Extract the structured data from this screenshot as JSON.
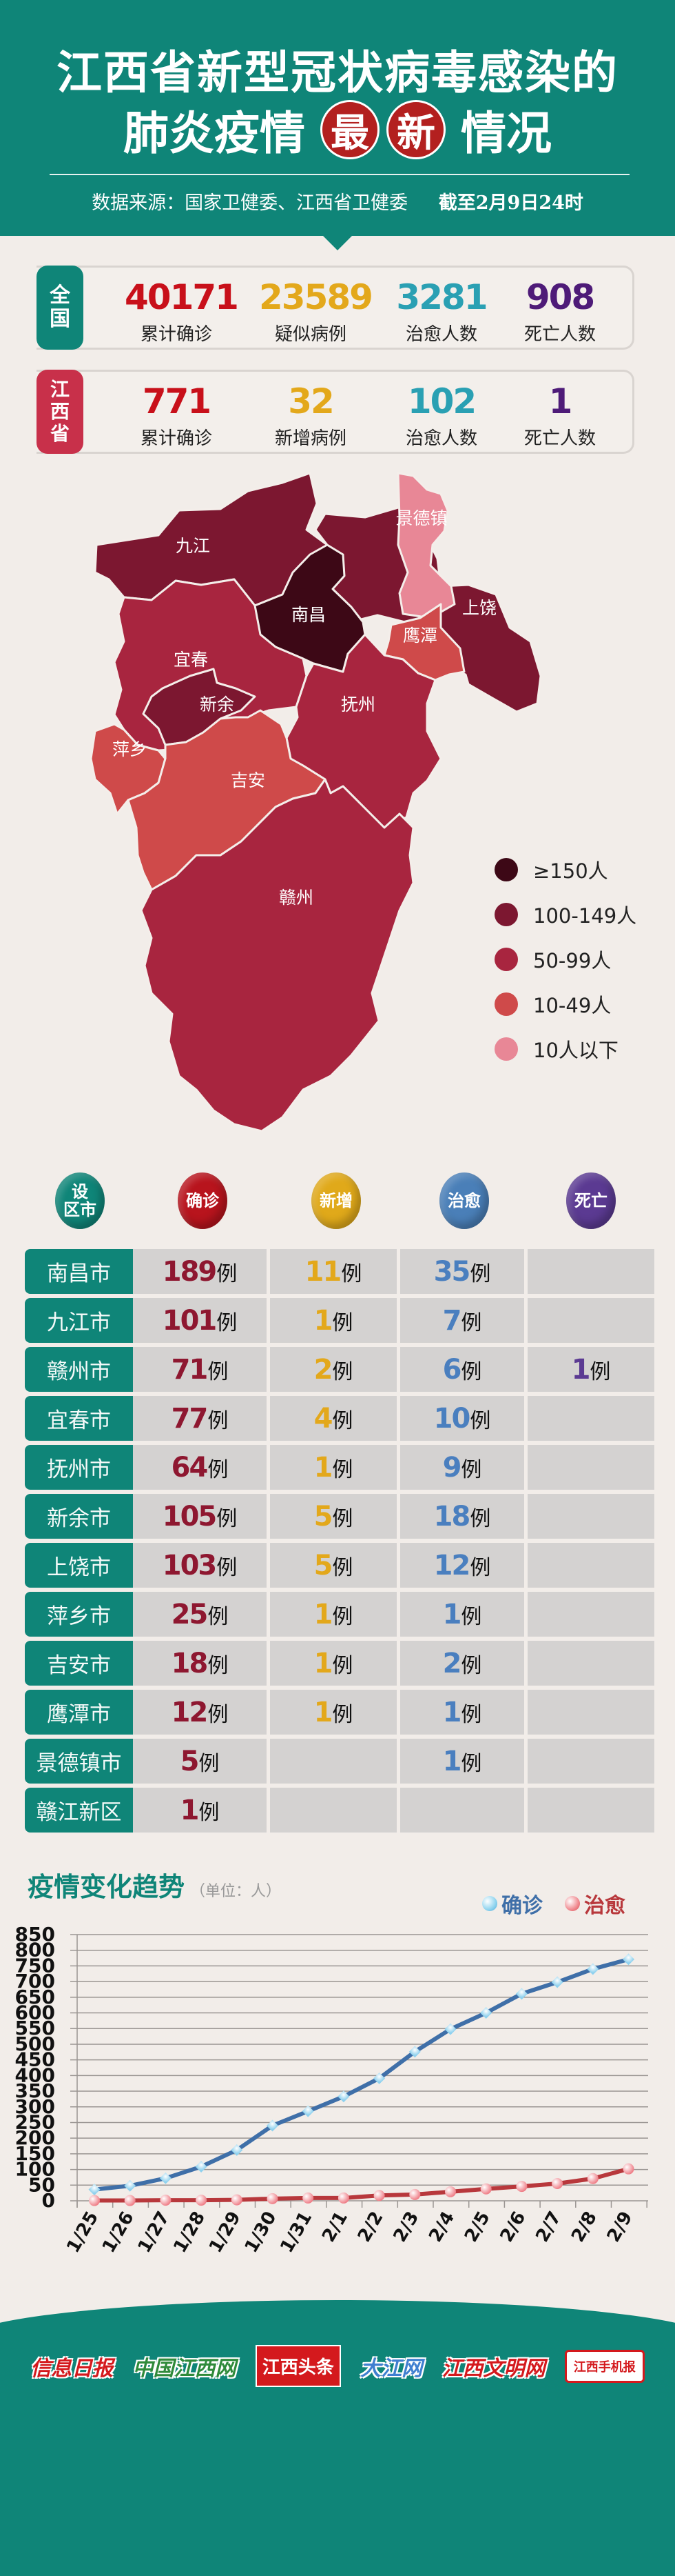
{
  "header": {
    "title_line1": "江西省新型冠状病毒感染的",
    "title_line2_pre": "肺炎疫情",
    "title_circle1": "最",
    "title_circle2": "新",
    "title_line2_post": "情况",
    "source": "数据来源：国家卫健委、江西省卫健委",
    "date": "截至2月9日24时"
  },
  "national": {
    "badge": [
      "全",
      "国"
    ],
    "items": [
      {
        "value": "40171",
        "label": "累计确诊",
        "color": "#c8101a"
      },
      {
        "value": "23589",
        "label": "疑似病例",
        "color": "#e3a81b"
      },
      {
        "value": "3281",
        "label": "治愈人数",
        "color": "#2aa0b3"
      },
      {
        "value": "908",
        "label": "死亡人数",
        "color": "#4e1b78"
      }
    ]
  },
  "province": {
    "badge": [
      "江",
      "西",
      "省"
    ],
    "items": [
      {
        "value": "771",
        "label": "累计确诊",
        "color": "#c8101a"
      },
      {
        "value": "32",
        "label": "新增病例",
        "color": "#e3a81b"
      },
      {
        "value": "102",
        "label": "治愈人数",
        "color": "#2aa0b3"
      },
      {
        "value": "1",
        "label": "死亡人数",
        "color": "#4e1b78"
      }
    ]
  },
  "map": {
    "regions": [
      {
        "name": "九江",
        "bucket": "100-149人"
      },
      {
        "name": "景德镇",
        "bucket": "10人以下"
      },
      {
        "name": "南昌",
        "bucket": "≥150人"
      },
      {
        "name": "上饶",
        "bucket": "100-149人"
      },
      {
        "name": "鹰潭",
        "bucket": "10-49人"
      },
      {
        "name": "宜春",
        "bucket": "50-99人"
      },
      {
        "name": "新余",
        "bucket": "100-149人"
      },
      {
        "name": "抚州",
        "bucket": "50-99人"
      },
      {
        "name": "萍乡",
        "bucket": "10-49人"
      },
      {
        "name": "吉安",
        "bucket": "10-49人"
      },
      {
        "name": "赣州",
        "bucket": "50-99人"
      }
    ],
    "legend": [
      {
        "label": "≥150人",
        "color": "#3d0816"
      },
      {
        "label": "100-149人",
        "color": "#7c1730"
      },
      {
        "label": "50-99人",
        "color": "#a8253f"
      },
      {
        "label": "10-49人",
        "color": "#cf4a4a"
      },
      {
        "label": "10人以下",
        "color": "#e88796"
      }
    ]
  },
  "table": {
    "headers": [
      {
        "label": "设区市",
        "lines": [
          "设",
          "区市"
        ],
        "color": "#0f8578"
      },
      {
        "label": "确诊",
        "lines": [
          "确诊"
        ],
        "color": "#b8141d"
      },
      {
        "label": "新增",
        "lines": [
          "新增"
        ],
        "color": "#e0a91a"
      },
      {
        "label": "治愈",
        "lines": [
          "治愈"
        ],
        "color": "#4a7fb8"
      },
      {
        "label": "死亡",
        "lines": [
          "死亡"
        ],
        "color": "#5b3a92"
      }
    ],
    "unit": "例",
    "colors": {
      "confirmed": "#8e1730",
      "new": "#e3a81b",
      "cured": "#4a7fbf",
      "death": "#5b3a92"
    },
    "rows": [
      {
        "city": "南昌市",
        "confirmed": "189",
        "new": "11",
        "cured": "35",
        "death": ""
      },
      {
        "city": "九江市",
        "confirmed": "101",
        "new": "1",
        "cured": "7",
        "death": ""
      },
      {
        "city": "赣州市",
        "confirmed": "71",
        "new": "2",
        "cured": "6",
        "death": "1"
      },
      {
        "city": "宜春市",
        "confirmed": "77",
        "new": "4",
        "cured": "10",
        "death": ""
      },
      {
        "city": "抚州市",
        "confirmed": "64",
        "new": "1",
        "cured": "9",
        "death": ""
      },
      {
        "city": "新余市",
        "confirmed": "105",
        "new": "5",
        "cured": "18",
        "death": ""
      },
      {
        "city": "上饶市",
        "confirmed": "103",
        "new": "5",
        "cured": "12",
        "death": ""
      },
      {
        "city": "萍乡市",
        "confirmed": "25",
        "new": "1",
        "cured": "1",
        "death": ""
      },
      {
        "city": "吉安市",
        "confirmed": "18",
        "new": "1",
        "cured": "2",
        "death": ""
      },
      {
        "city": "鹰潭市",
        "confirmed": "12",
        "new": "1",
        "cured": "1",
        "death": ""
      },
      {
        "city": "景德镇市",
        "confirmed": "5",
        "new": "",
        "cured": "1",
        "death": ""
      },
      {
        "city": "赣江新区",
        "confirmed": "1",
        "new": "",
        "cured": "",
        "death": ""
      }
    ]
  },
  "chart": {
    "title": "疫情变化趋势",
    "unit": "（单位：人）",
    "legend_confirmed": "确诊",
    "legend_cured": "治愈"
  },
  "chart_data": {
    "type": "line",
    "title": "疫情变化趋势",
    "subtitle": "（单位：人）",
    "xlabel": "",
    "ylabel": "人",
    "ylim": [
      0,
      850
    ],
    "yticks": [
      0,
      50,
      100,
      150,
      200,
      250,
      300,
      350,
      400,
      450,
      500,
      550,
      600,
      650,
      700,
      750,
      800,
      850
    ],
    "grid": true,
    "legend_position": "top-right",
    "x": [
      "1/25",
      "1/26",
      "1/27",
      "1/28",
      "1/29",
      "1/30",
      "1/31",
      "2/1",
      "2/2",
      "2/3",
      "2/4",
      "2/5",
      "2/6",
      "2/7",
      "2/8",
      "2/9"
    ],
    "series": [
      {
        "name": "确诊",
        "color": "#3f6fa8",
        "values": [
          36,
          48,
          72,
          109,
          162,
          240,
          286,
          333,
          391,
          476,
          548,
          600,
          661,
          698,
          740,
          771
        ]
      },
      {
        "name": "治愈",
        "color": "#b8383c",
        "values": [
          1,
          1,
          2,
          2,
          3,
          7,
          9,
          9,
          17,
          20,
          29,
          38,
          46,
          55,
          71,
          102
        ]
      }
    ]
  },
  "footer": {
    "logos": [
      "信息日报",
      "中国江西网",
      "江西头条",
      "大江网",
      "江西文明网",
      "江西手机报"
    ]
  }
}
